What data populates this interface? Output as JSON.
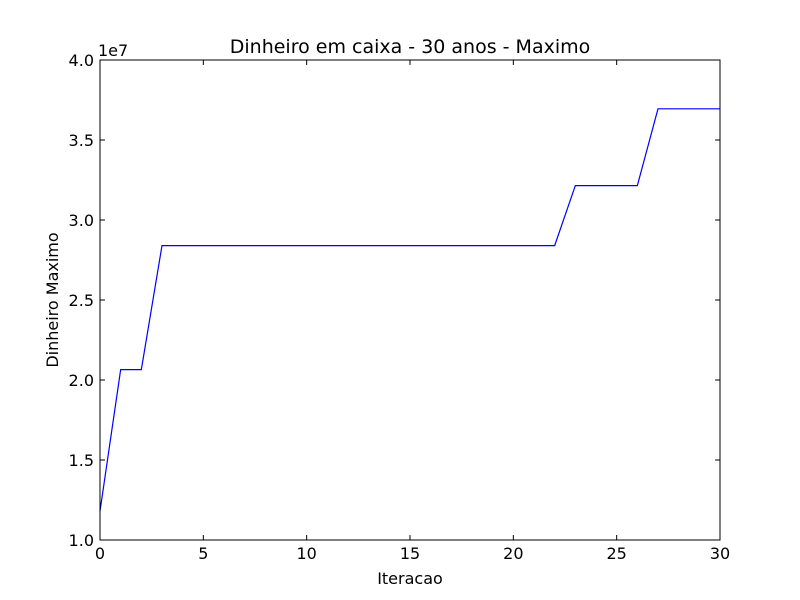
{
  "chart_data": {
    "type": "line",
    "title": "Dinheiro em caixa - 30 anos - Maximo",
    "xlabel": "Iteracao",
    "ylabel": "Dinheiro Maximo",
    "y_multiplier_label": "1e7",
    "xlim": [
      0,
      30
    ],
    "ylim": [
      10000000,
      40000000
    ],
    "x_ticks": [
      0,
      5,
      10,
      15,
      20,
      25,
      30
    ],
    "x_tick_labels": [
      "0",
      "5",
      "10",
      "15",
      "20",
      "25",
      "30"
    ],
    "y_ticks": [
      10000000,
      15000000,
      20000000,
      25000000,
      30000000,
      35000000,
      40000000
    ],
    "y_tick_labels": [
      "1.0",
      "1.5",
      "2.0",
      "2.5",
      "3.0",
      "3.5",
      "4.0"
    ],
    "grid": false,
    "series": [
      {
        "color": "#0000ff",
        "x": [
          0,
          1,
          2,
          3,
          4,
          5,
          6,
          7,
          8,
          9,
          10,
          11,
          12,
          13,
          14,
          15,
          16,
          17,
          18,
          19,
          20,
          21,
          22,
          23,
          24,
          25,
          26,
          27,
          28,
          29,
          30
        ],
        "y": [
          11800000,
          20650000,
          20650000,
          28400000,
          28400000,
          28400000,
          28400000,
          28400000,
          28400000,
          28400000,
          28400000,
          28400000,
          28400000,
          28400000,
          28400000,
          28400000,
          28400000,
          28400000,
          28400000,
          28400000,
          28400000,
          28400000,
          28400000,
          32150000,
          32150000,
          32150000,
          32150000,
          36950000,
          36950000,
          36950000,
          36950000
        ]
      }
    ]
  }
}
